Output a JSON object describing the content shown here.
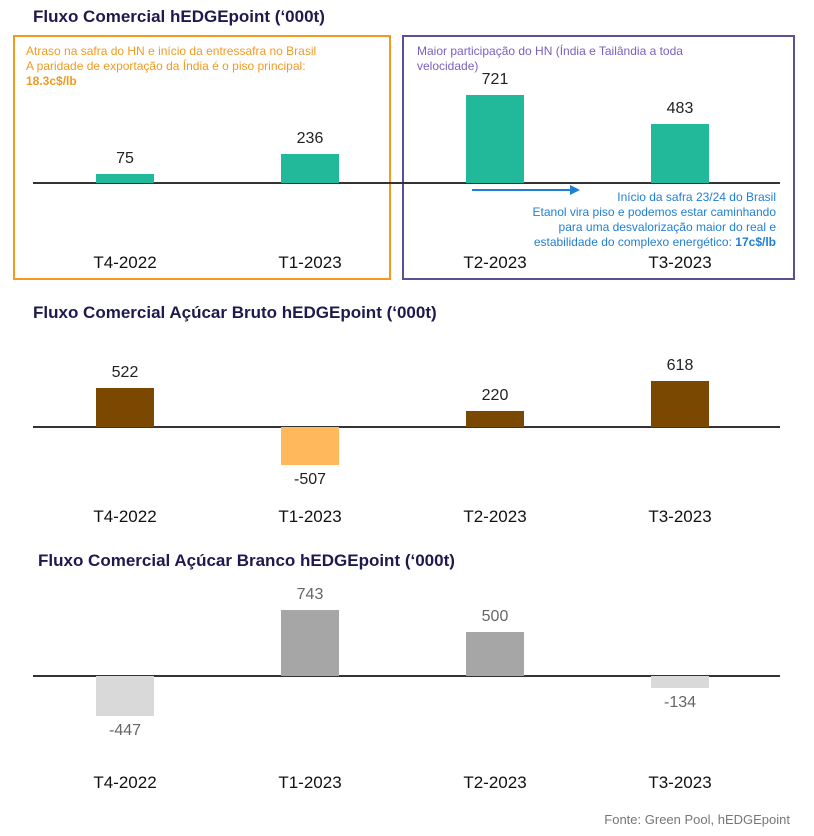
{
  "chart_data": [
    {
      "type": "bar",
      "title": "Fluxo Comercial hEDGEpoint (‘000t)",
      "categories": [
        "T4-2022",
        "T1-2023",
        "T2-2023",
        "T3-2023"
      ],
      "values": [
        75,
        236,
        721,
        483
      ],
      "colors": [
        "#22b99a",
        "#22b99a",
        "#22b99a",
        "#22b99a"
      ]
    },
    {
      "type": "bar",
      "title": "Fluxo Comercial Açúcar Bruto hEDGEpoint (‘000t)",
      "categories": [
        "T4-2022",
        "T1-2023",
        "T2-2023",
        "T3-2023"
      ],
      "values": [
        522,
        -507,
        220,
        618
      ],
      "colors": [
        "#7a4800",
        "#ffb85c",
        "#7a4800",
        "#7a4800"
      ]
    },
    {
      "type": "bar",
      "title": "Fluxo Comercial Açúcar Branco hEDGEpoint (‘000t)",
      "categories": [
        "T4-2022",
        "T1-2023",
        "T2-2023",
        "T3-2023"
      ],
      "values": [
        -447,
        743,
        500,
        -134
      ],
      "colors": [
        "#d9d9d9",
        "#a6a6a6",
        "#a6a6a6",
        "#d9d9d9"
      ]
    }
  ],
  "annotations": {
    "left_box": {
      "line1": "Atraso na safra do HN e início da entressafra no Brasil",
      "line2": "A paridade de exportação da Índia é o piso principal:",
      "bold": "18.3c$/lb",
      "color": "#f29a1e"
    },
    "right_box": {
      "text": "Maior participação do HN (Índia e Tailândia a toda velocidade)",
      "color": "#7a5fc0"
    },
    "arrow_note": {
      "line1": "Início da safra 23/24 do Brasil",
      "line2": "Etanol vira piso e podemos estar caminhando",
      "line3": "para uma desvalorização maior do real e",
      "line4": "estabilidade do complexo energético:",
      "bold": "17c$/lb",
      "color": "#1f7fd6"
    }
  },
  "source": "Fonte: Green Pool, hEDGEpoint"
}
